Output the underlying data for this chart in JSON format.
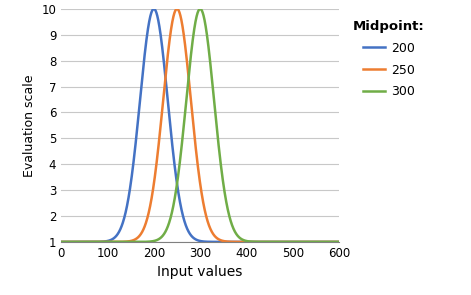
{
  "midpoints": [
    200,
    250,
    300
  ],
  "colors": [
    "#4472C4",
    "#ED7D31",
    "#70AD47"
  ],
  "x_min": 0,
  "x_max": 600,
  "y_min": 1,
  "y_max": 10,
  "x_ticks": [
    0,
    100,
    200,
    300,
    400,
    500,
    600
  ],
  "y_ticks": [
    1,
    2,
    3,
    4,
    5,
    6,
    7,
    8,
    9,
    10
  ],
  "xlabel": "Input values",
  "ylabel": "Evaluation scale",
  "legend_title": "Midpoint:",
  "legend_labels": [
    "200",
    "250",
    "300"
  ],
  "sigma": 30,
  "baseline": 1,
  "peak": 10,
  "background_color": "#FFFFFF",
  "grid_color": "#C8C8C8",
  "line_width": 1.8
}
